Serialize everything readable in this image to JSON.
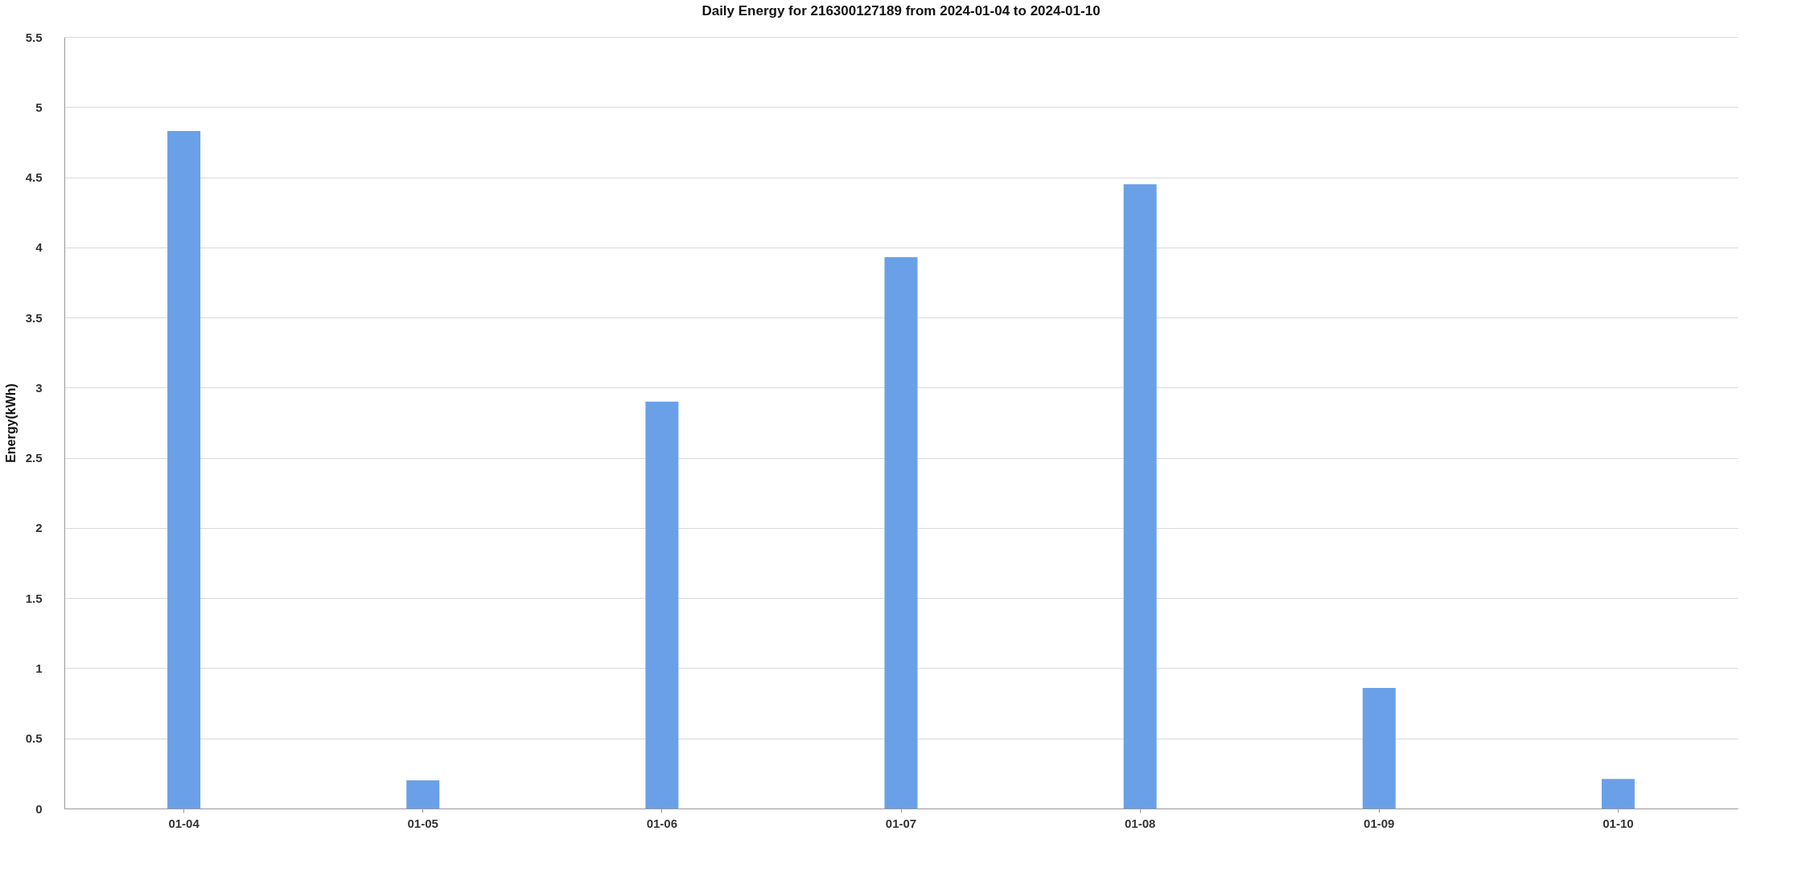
{
  "chart_data": {
    "type": "bar",
    "title": "Daily Energy for 216300127189 from 2024-01-04 to 2024-01-10",
    "ylabel": "Energy(kWh)",
    "categories": [
      "01-04",
      "01-05",
      "01-06",
      "01-07",
      "01-08",
      "01-09",
      "01-10"
    ],
    "values": [
      4.83,
      0.2,
      2.9,
      3.93,
      4.45,
      0.86,
      0.21
    ],
    "color": "#6aa0e8",
    "ylim": [
      0,
      5.5
    ],
    "yticks": [
      0,
      0.5,
      1,
      1.5,
      2,
      2.5,
      3,
      3.5,
      4,
      4.5,
      5,
      5.5
    ],
    "grid": "y"
  }
}
